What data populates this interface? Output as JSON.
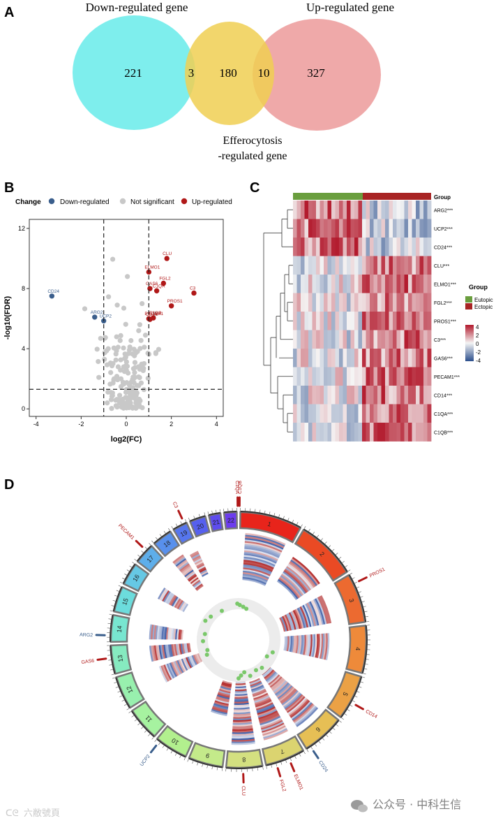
{
  "panels": {
    "a": "A",
    "b": "B",
    "c": "C",
    "d": "D"
  },
  "venn": {
    "down_label": "Down-regulated gene",
    "up_label": "Up-regulated gene",
    "eff_label_1": "Efferocytosis",
    "eff_label_2": "-regulated gene",
    "counts": {
      "down_only": "221",
      "down_eff": "3",
      "eff_only": "180",
      "eff_up": "10",
      "up_only": "327"
    },
    "colors": {
      "down": "#7eeeed",
      "eff": "#f0cf52",
      "up": "#eea4a4"
    }
  },
  "volcano": {
    "legend_title": "Change",
    "legend": [
      "Down-regulated",
      "Not significant",
      "Up-regulated"
    ],
    "colors": {
      "down": "#3a5e8c",
      "ns": "#c8c8c8",
      "up": "#b01818"
    },
    "xlabel": "log2(FC)",
    "ylabel": "-log10(FDR)",
    "x_ticks": [
      "-4",
      "-2",
      "0",
      "2",
      "4"
    ],
    "y_ticks": [
      "0",
      "4",
      "8",
      "12"
    ],
    "chart_data": {
      "type": "scatter",
      "xlim": [
        -4.3,
        4.3
      ],
      "ylim": [
        -0.5,
        12.6
      ],
      "thresholds": {
        "x": [
          -1,
          1
        ],
        "y": 1.3
      },
      "points": [
        {
          "label": "CD24",
          "x": -3.3,
          "y": 7.5,
          "group": "down"
        },
        {
          "label": "ARG2",
          "x": -1.4,
          "y": 6.1,
          "group": "down"
        },
        {
          "label": "UCP2",
          "x": -1.0,
          "y": 5.85,
          "group": "down"
        },
        {
          "label": "CLU",
          "x": 1.8,
          "y": 10.0,
          "group": "up"
        },
        {
          "label": "ELMO1",
          "x": 1.0,
          "y": 9.1,
          "group": "up"
        },
        {
          "label": "FGL2",
          "x": 1.65,
          "y": 8.35,
          "group": "up"
        },
        {
          "label": "GAS6",
          "x": 1.05,
          "y": 8.0,
          "group": "up"
        },
        {
          "label": "C3",
          "x": 3.0,
          "y": 7.7,
          "group": "up"
        },
        {
          "label": "C1QA",
          "x": 1.35,
          "y": 7.85,
          "group": "up"
        },
        {
          "label": "PROS1",
          "x": 2.0,
          "y": 6.85,
          "group": "up"
        },
        {
          "label": "PECAM1",
          "x": 1.0,
          "y": 6.0,
          "group": "up"
        },
        {
          "label": "C1QB",
          "x": 1.2,
          "y": 6.05,
          "group": "up"
        },
        {
          "label": "CD14",
          "x": 1.05,
          "y": 5.95,
          "group": "up"
        }
      ]
    }
  },
  "heatmap": {
    "group_title": "Group",
    "group_names": [
      "Eutopic",
      "Ectopic"
    ],
    "group_colors": [
      "#6a9e3e",
      "#a82424"
    ],
    "genes": [
      "ARG2***",
      "UCP2***",
      "CD24***",
      "CLU***",
      "ELMO1***",
      "FGL2***",
      "PROS1***",
      "C3***",
      "GAS6***",
      "PECAM1***",
      "CD14***",
      "C1QA***",
      "C1QB***"
    ],
    "scale_ticks": [
      "4",
      "2",
      "0",
      "-2",
      "-4"
    ]
  },
  "circos": {
    "chromosomes": [
      "1",
      "2",
      "3",
      "4",
      "5",
      "6",
      "7",
      "8",
      "9",
      "10",
      "11",
      "12",
      "13",
      "14",
      "15",
      "16",
      "17",
      "18",
      "19",
      "20",
      "21",
      "22"
    ],
    "gene_labels": [
      {
        "name": "C1QA",
        "color": "#b01818"
      },
      {
        "name": "C1QB",
        "color": "#b01818"
      },
      {
        "name": "C3",
        "color": "#b01818"
      },
      {
        "name": "PECAM1",
        "color": "#b01818"
      },
      {
        "name": "PROS1",
        "color": "#b01818"
      },
      {
        "name": "ARG2",
        "color": "#3a5e8c"
      },
      {
        "name": "GAS6",
        "color": "#b01818"
      },
      {
        "name": "CD14",
        "color": "#b01818"
      },
      {
        "name": "UCP2",
        "color": "#3a5e8c"
      },
      {
        "name": "CD24",
        "color": "#3a5e8c"
      },
      {
        "name": "CLU",
        "color": "#b01818"
      },
      {
        "name": "FGL2",
        "color": "#b01818"
      },
      {
        "name": "ELMO1",
        "color": "#b01818"
      }
    ]
  },
  "watermarks": {
    "left": "六敝號頁",
    "right": "公众号 · 中科生信"
  }
}
